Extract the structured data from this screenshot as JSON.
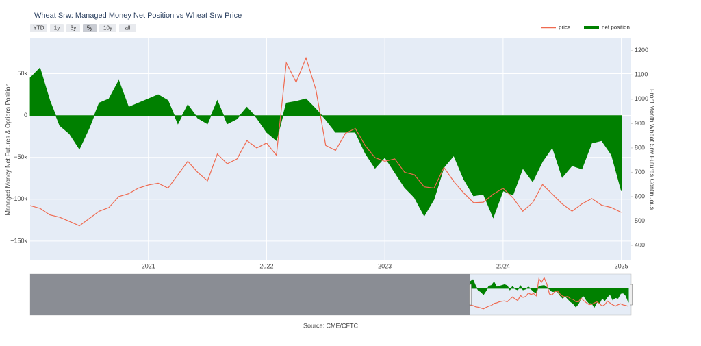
{
  "chart_data": {
    "type": "line",
    "title": "Wheat Srw: Managed Money Net Position vs Wheat Srw Price",
    "range_buttons": [
      "YTD",
      "1y",
      "3y",
      "5y",
      "10y",
      "all"
    ],
    "range_selected": "5y",
    "y_label": "Managed Money Net Futures & Options Position",
    "y2_label": "Front Month Wheat Srw Futures Continuous",
    "source": "Source: CME/CFTC",
    "x": [
      "2020-01",
      "2020-02",
      "2020-03",
      "2020-04",
      "2020-05",
      "2020-06",
      "2020-07",
      "2020-08",
      "2020-09",
      "2020-10",
      "2020-11",
      "2020-12",
      "2021-01",
      "2021-02",
      "2021-03",
      "2021-04",
      "2021-05",
      "2021-06",
      "2021-07",
      "2021-08",
      "2021-09",
      "2021-10",
      "2021-11",
      "2021-12",
      "2022-01",
      "2022-02",
      "2022-03",
      "2022-04",
      "2022-05",
      "2022-06",
      "2022-07",
      "2022-08",
      "2022-09",
      "2022-10",
      "2022-11",
      "2022-12",
      "2023-01",
      "2023-02",
      "2023-03",
      "2023-04",
      "2023-05",
      "2023-06",
      "2023-07",
      "2023-08",
      "2023-09",
      "2023-10",
      "2023-11",
      "2023-12",
      "2024-01",
      "2024-02",
      "2024-03",
      "2024-04",
      "2024-05",
      "2024-06",
      "2024-07",
      "2024-08",
      "2024-09",
      "2024-10",
      "2024-11",
      "2024-12",
      "2025-01"
    ],
    "series": [
      {
        "name": "price",
        "color": "#ef6a50",
        "axis": "y2",
        "style": "line",
        "values": [
          563,
          552,
          525,
          515,
          498,
          480,
          510,
          540,
          555,
          600,
          612,
          635,
          648,
          655,
          635,
          690,
          745,
          700,
          665,
          775,
          735,
          755,
          830,
          800,
          820,
          770,
          1150,
          1070,
          1170,
          1040,
          810,
          790,
          860,
          880,
          810,
          760,
          745,
          755,
          700,
          690,
          640,
          635,
          720,
          662,
          615,
          575,
          577,
          610,
          634,
          595,
          540,
          575,
          650,
          610,
          570,
          540,
          570,
          592,
          565,
          555,
          535
        ]
      },
      {
        "name": "net position",
        "color": "#008000",
        "axis": "y",
        "style": "area",
        "values": [
          45000,
          57000,
          18000,
          -12000,
          -22000,
          -40000,
          -15000,
          15000,
          20000,
          42000,
          10000,
          15000,
          20000,
          25000,
          18000,
          -10000,
          13000,
          -3000,
          -10000,
          18000,
          -10000,
          -4000,
          10000,
          -3000,
          -20000,
          -30000,
          15000,
          17000,
          20000,
          8000,
          -5000,
          -20000,
          -20000,
          -20000,
          -45000,
          -63000,
          -50000,
          -68000,
          -86000,
          -98000,
          -120000,
          -100000,
          -62000,
          -48000,
          -76000,
          -96000,
          -94000,
          -122000,
          -90000,
          -95000,
          -63000,
          -79000,
          -55000,
          -38000,
          -74000,
          -60000,
          -64000,
          -33000,
          -30000,
          -47000,
          -90000
        ]
      }
    ],
    "xlim": [
      "2020-01",
      "2025-02"
    ],
    "xticks": [
      2021,
      2022,
      2023,
      2024,
      2025
    ],
    "ylim": [
      -173000,
      93000
    ],
    "yticks": [
      {
        "value": 50000,
        "label": "50k"
      },
      0,
      {
        "value": -50000,
        "label": "−50k"
      },
      {
        "value": -100000,
        "label": "−100k"
      },
      {
        "value": -150000,
        "label": "−150k"
      }
    ],
    "y2lim": [
      338,
      1253
    ],
    "y2ticks": [
      400,
      500,
      600,
      700,
      800,
      900,
      1000,
      1100,
      1200
    ],
    "grid": true,
    "legend": "top-right"
  }
}
